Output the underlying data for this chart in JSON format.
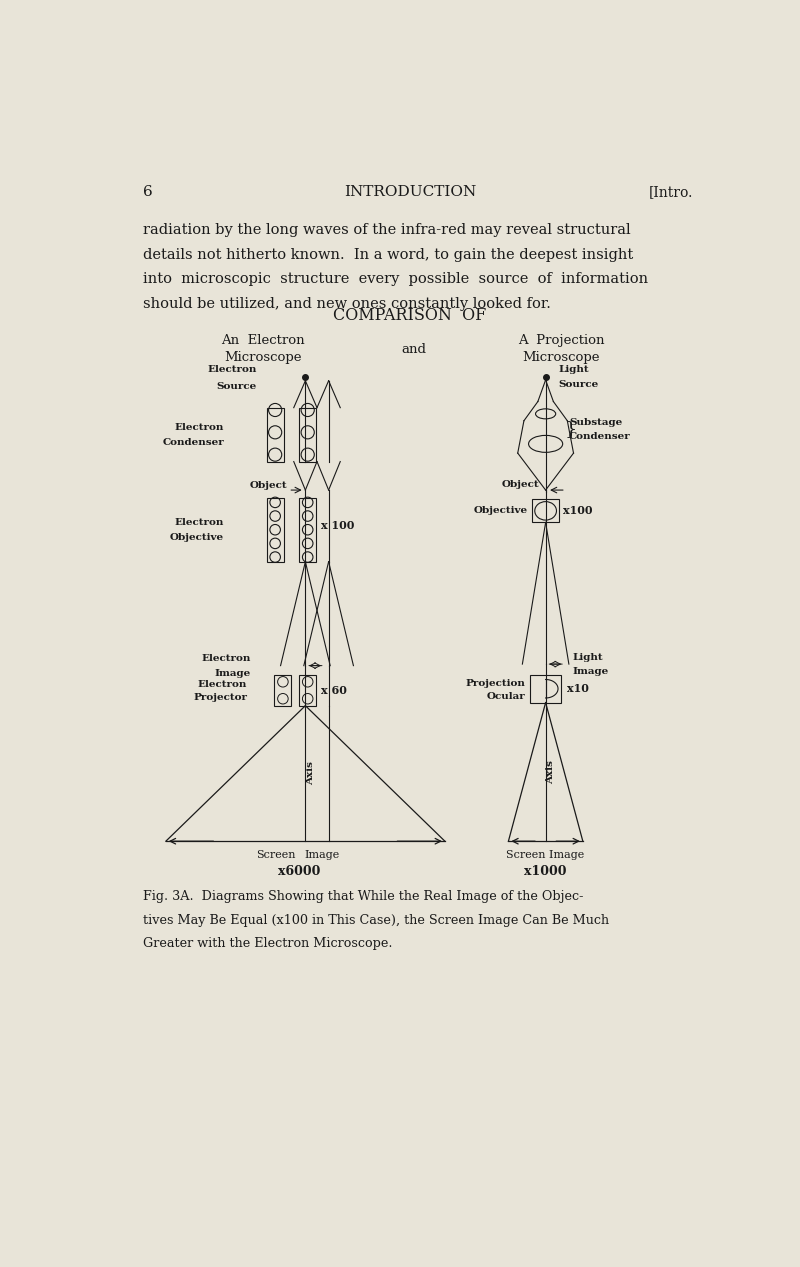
{
  "bg_color": "#e8e4d8",
  "text_color": "#1a1a1a",
  "line_color": "#1a1a1a",
  "page_number": "6",
  "header_center": "INTRODUCTION",
  "header_right": "[Intro.",
  "body_text": "radiation by the long waves of the infra-red may reveal structural\ndetails not hitherto known.  In a word, to gain the deepest insight\ninto  microscopic  structure  every  possible  source  of  information\nshould be utilized, and new ones constantly looked for.",
  "comparison_title": "COMPARISON  OF",
  "left_subtitle1": "An  Electron",
  "left_subtitle2": "Microscope",
  "center_and": "and",
  "right_subtitle1": "A  Projection",
  "right_subtitle2": "Microscope",
  "caption": "Fig. 3A.  Diagrams Showing that While the Real Image of the Objec-\ntives May Be Equal (x100 in This Case), the Screen Image Can Be Much\nGreater with the Electron Microscope."
}
